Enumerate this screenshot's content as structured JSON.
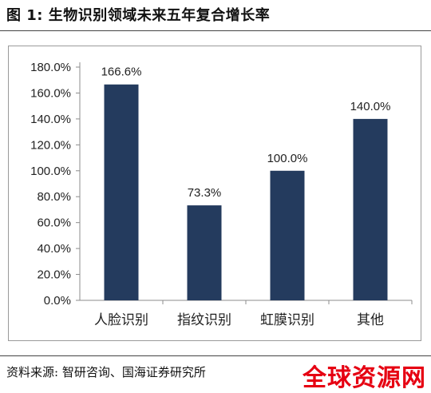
{
  "header": {
    "title": "图 1:  生物识别领域未来五年复合增长率"
  },
  "chart_data": {
    "type": "bar",
    "categories": [
      "人脸识别",
      "指纹识别",
      "虹膜识别",
      "其他"
    ],
    "values": [
      166.6,
      73.3,
      100.0,
      140.0
    ],
    "value_labels": [
      "166.6%",
      "73.3%",
      "100.0%",
      "140.0%"
    ],
    "ylim": [
      0,
      180
    ],
    "yticks": [
      0,
      20,
      40,
      60,
      80,
      100,
      120,
      140,
      160,
      180
    ],
    "ytick_labels": [
      "0.0%",
      "20.0%",
      "40.0%",
      "60.0%",
      "80.0%",
      "100.0%",
      "120.0%",
      "140.0%",
      "160.0%",
      "180.0%"
    ],
    "bar_color": "#243b5e",
    "grid": false,
    "title": "",
    "xlabel": "",
    "ylabel": ""
  },
  "footer": {
    "source": "资料来源:  智研咨询、国海证券研究所",
    "watermark": "全球资源网",
    "watermark_color": "#e60012"
  }
}
